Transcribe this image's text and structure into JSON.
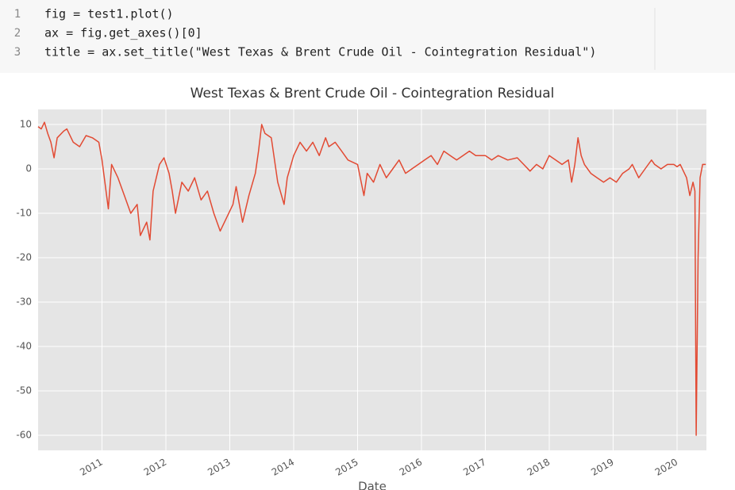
{
  "code": {
    "lines": [
      {
        "number": 1,
        "text": "fig = test1.plot()"
      },
      {
        "number": 2,
        "text": "ax = fig.get_axes()[0]"
      },
      {
        "number": 3,
        "text": "title = ax.set_title(\"West Texas & Brent Crude Oil - Cointegration Residual\")"
      }
    ]
  },
  "chart_data": {
    "type": "line",
    "title": "West Texas & Brent Crude Oil - Cointegration Residual",
    "x_label": "Date",
    "color": "#e24a33",
    "grid": true,
    "xlim": [
      2010.0,
      2020.46
    ],
    "xticks": [
      2011,
      2012,
      2013,
      2014,
      2015,
      2016,
      2017,
      2018,
      2019,
      2020
    ],
    "ylim": [
      -63.4,
      13.4
    ],
    "yticks": [
      10,
      0,
      -10,
      -20,
      -30,
      -40,
      -50,
      -60
    ],
    "x": [
      2010.0,
      2010.05,
      2010.1,
      2010.15,
      2010.2,
      2010.25,
      2010.3,
      2010.4,
      2010.45,
      2010.55,
      2010.65,
      2010.75,
      2010.85,
      2010.95,
      2011.0,
      2011.1,
      2011.15,
      2011.25,
      2011.35,
      2011.45,
      2011.55,
      2011.6,
      2011.7,
      2011.75,
      2011.8,
      2011.9,
      2011.97,
      2012.05,
      2012.1,
      2012.15,
      2012.25,
      2012.35,
      2012.45,
      2012.55,
      2012.65,
      2012.75,
      2012.85,
      2012.95,
      2013.05,
      2013.1,
      2013.2,
      2013.3,
      2013.4,
      2013.45,
      2013.5,
      2013.55,
      2013.65,
      2013.75,
      2013.85,
      2013.9,
      2014.0,
      2014.1,
      2014.2,
      2014.3,
      2014.4,
      2014.5,
      2014.55,
      2014.65,
      2014.75,
      2014.85,
      2015.0,
      2015.1,
      2015.15,
      2015.25,
      2015.35,
      2015.45,
      2015.55,
      2015.65,
      2015.75,
      2015.85,
      2015.95,
      2016.05,
      2016.15,
      2016.25,
      2016.35,
      2016.45,
      2016.55,
      2016.65,
      2016.75,
      2016.85,
      2017.0,
      2017.1,
      2017.2,
      2017.35,
      2017.5,
      2017.6,
      2017.7,
      2017.8,
      2017.9,
      2018.0,
      2018.1,
      2018.2,
      2018.3,
      2018.35,
      2018.4,
      2018.45,
      2018.5,
      2018.55,
      2018.65,
      2018.75,
      2018.85,
      2018.95,
      2019.05,
      2019.15,
      2019.25,
      2019.3,
      2019.4,
      2019.5,
      2019.6,
      2019.65,
      2019.75,
      2019.85,
      2019.95,
      2020.0,
      2020.05,
      2020.15,
      2020.2,
      2020.25,
      2020.28,
      2020.3,
      2020.33,
      2020.36,
      2020.4,
      2020.45
    ],
    "values": [
      9.5,
      9,
      10.5,
      8,
      6,
      2.5,
      7,
      8.5,
      9,
      6,
      5,
      7.5,
      7,
      6,
      2,
      -9,
      1,
      -2,
      -6,
      -10,
      -8,
      -15,
      -12,
      -16,
      -5,
      1,
      2.5,
      -1,
      -5,
      -10,
      -3,
      -5,
      -2,
      -7,
      -5,
      -10,
      -14,
      -11,
      -8,
      -4,
      -12,
      -6,
      -1,
      4,
      10,
      8,
      7,
      -3,
      -8,
      -2,
      3,
      6,
      4,
      6,
      3,
      7,
      5,
      6,
      4,
      2,
      1,
      -6,
      -1,
      -3,
      1,
      -2,
      0,
      2,
      -1,
      0,
      1,
      2,
      3,
      1,
      4,
      3,
      2,
      3,
      4,
      3,
      3,
      2,
      3,
      2,
      2.5,
      1,
      -0.5,
      1,
      0,
      3,
      2,
      1,
      2,
      -3,
      1,
      7,
      3,
      1,
      -1,
      -2,
      -3,
      -2,
      -3,
      -1,
      0,
      1,
      -2,
      0,
      2,
      1,
      0,
      1,
      1,
      0.5,
      1,
      -2,
      -6,
      -3,
      -5,
      -60,
      -20,
      -2,
      1,
      1
    ]
  }
}
